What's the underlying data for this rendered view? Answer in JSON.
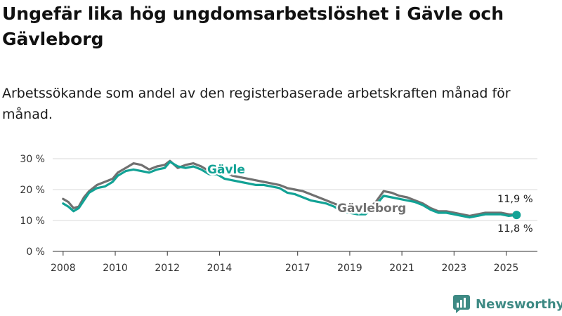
{
  "chart_data": {
    "type": "line",
    "title": "Ungefär lika hög ungdomsarbetslöshet i Gävle och Gävleborg",
    "subtitle": "Arbetssökande som andel av den registerbaserade arbetskraften månad för månad.",
    "ylim": [
      0,
      30
    ],
    "yticks": [
      0,
      10,
      20,
      30
    ],
    "ytick_labels": [
      "0 %",
      "10 %",
      "20 %",
      "30 %"
    ],
    "xlim": [
      2007.6,
      2026.2
    ],
    "xticks": [
      2008,
      2010,
      2012,
      2014,
      2017,
      2019,
      2021,
      2023,
      2025
    ],
    "xtick_labels": [
      "2008",
      "2010",
      "2012",
      "2014",
      "2017",
      "2019",
      "2021",
      "2023",
      "2025"
    ],
    "grid": true,
    "legend": "inline labels",
    "series": [
      {
        "name": "Gävleborg",
        "color": "#707070",
        "end_label": "11,9 %",
        "points": [
          [
            2008.0,
            17.0
          ],
          [
            2008.2,
            16.0
          ],
          [
            2008.4,
            14.0
          ],
          [
            2008.6,
            14.5
          ],
          [
            2008.8,
            17.5
          ],
          [
            2009.0,
            19.5
          ],
          [
            2009.3,
            21.5
          ],
          [
            2009.6,
            22.5
          ],
          [
            2009.9,
            23.5
          ],
          [
            2010.1,
            25.5
          ],
          [
            2010.4,
            27.0
          ],
          [
            2010.7,
            28.5
          ],
          [
            2011.0,
            28.0
          ],
          [
            2011.3,
            26.5
          ],
          [
            2011.6,
            27.5
          ],
          [
            2011.9,
            28.0
          ],
          [
            2012.1,
            29.3
          ],
          [
            2012.4,
            27.0
          ],
          [
            2012.7,
            28.0
          ],
          [
            2013.0,
            28.5
          ],
          [
            2013.3,
            27.5
          ],
          [
            2013.6,
            26.0
          ],
          [
            2013.9,
            27.0
          ],
          [
            2014.2,
            25.5
          ],
          [
            2014.5,
            24.5
          ],
          [
            2014.8,
            24.0
          ],
          [
            2015.1,
            23.5
          ],
          [
            2015.4,
            23.0
          ],
          [
            2015.7,
            22.5
          ],
          [
            2016.0,
            22.0
          ],
          [
            2016.3,
            21.5
          ],
          [
            2016.6,
            20.5
          ],
          [
            2016.9,
            20.0
          ],
          [
            2017.2,
            19.5
          ],
          [
            2017.5,
            18.5
          ],
          [
            2017.8,
            17.5
          ],
          [
            2018.1,
            16.5
          ],
          [
            2018.4,
            15.5
          ],
          [
            2018.7,
            14.5
          ],
          [
            2019.0,
            13.5
          ],
          [
            2019.3,
            13.0
          ],
          [
            2019.6,
            13.0
          ],
          [
            2020.0,
            16.0
          ],
          [
            2020.3,
            19.5
          ],
          [
            2020.6,
            19.0
          ],
          [
            2020.9,
            18.0
          ],
          [
            2021.2,
            17.5
          ],
          [
            2021.5,
            16.5
          ],
          [
            2021.8,
            15.5
          ],
          [
            2022.1,
            14.0
          ],
          [
            2022.4,
            13.0
          ],
          [
            2022.7,
            13.0
          ],
          [
            2023.0,
            12.5
          ],
          [
            2023.3,
            12.0
          ],
          [
            2023.6,
            11.5
          ],
          [
            2023.9,
            12.0
          ],
          [
            2024.2,
            12.5
          ],
          [
            2024.5,
            12.5
          ],
          [
            2024.8,
            12.5
          ],
          [
            2025.1,
            12.0
          ],
          [
            2025.4,
            11.9
          ]
        ]
      },
      {
        "name": "Gävle",
        "color": "#12a295",
        "end_label": "11,8 %",
        "points": [
          [
            2008.0,
            15.5
          ],
          [
            2008.2,
            14.5
          ],
          [
            2008.4,
            13.0
          ],
          [
            2008.6,
            14.0
          ],
          [
            2008.8,
            16.5
          ],
          [
            2009.0,
            19.0
          ],
          [
            2009.3,
            20.5
          ],
          [
            2009.6,
            21.0
          ],
          [
            2009.9,
            22.5
          ],
          [
            2010.1,
            24.5
          ],
          [
            2010.4,
            26.0
          ],
          [
            2010.7,
            26.5
          ],
          [
            2011.0,
            26.0
          ],
          [
            2011.3,
            25.5
          ],
          [
            2011.6,
            26.5
          ],
          [
            2011.9,
            27.0
          ],
          [
            2012.1,
            29.0
          ],
          [
            2012.4,
            27.5
          ],
          [
            2012.7,
            27.0
          ],
          [
            2013.0,
            27.5
          ],
          [
            2013.3,
            26.5
          ],
          [
            2013.6,
            25.0
          ],
          [
            2013.9,
            25.0
          ],
          [
            2014.2,
            23.5
          ],
          [
            2014.5,
            23.0
          ],
          [
            2014.8,
            22.5
          ],
          [
            2015.1,
            22.0
          ],
          [
            2015.4,
            21.5
          ],
          [
            2015.7,
            21.5
          ],
          [
            2016.0,
            21.0
          ],
          [
            2016.3,
            20.5
          ],
          [
            2016.6,
            19.0
          ],
          [
            2016.9,
            18.5
          ],
          [
            2017.2,
            17.5
          ],
          [
            2017.5,
            16.5
          ],
          [
            2017.8,
            16.0
          ],
          [
            2018.1,
            15.5
          ],
          [
            2018.4,
            14.5
          ],
          [
            2018.7,
            13.0
          ],
          [
            2019.0,
            12.5
          ],
          [
            2019.3,
            12.0
          ],
          [
            2019.6,
            12.0
          ],
          [
            2020.0,
            15.0
          ],
          [
            2020.3,
            18.0
          ],
          [
            2020.6,
            17.5
          ],
          [
            2020.9,
            17.0
          ],
          [
            2021.2,
            16.5
          ],
          [
            2021.5,
            16.0
          ],
          [
            2021.8,
            15.0
          ],
          [
            2022.1,
            13.5
          ],
          [
            2022.4,
            12.5
          ],
          [
            2022.7,
            12.5
          ],
          [
            2023.0,
            12.0
          ],
          [
            2023.3,
            11.5
          ],
          [
            2023.6,
            11.0
          ],
          [
            2023.9,
            11.5
          ],
          [
            2024.2,
            12.0
          ],
          [
            2024.5,
            12.0
          ],
          [
            2024.8,
            12.0
          ],
          [
            2025.1,
            11.5
          ],
          [
            2025.4,
            11.8
          ]
        ]
      }
    ]
  },
  "brand": {
    "name": "Newsworthy",
    "color": "#3e8a84"
  }
}
